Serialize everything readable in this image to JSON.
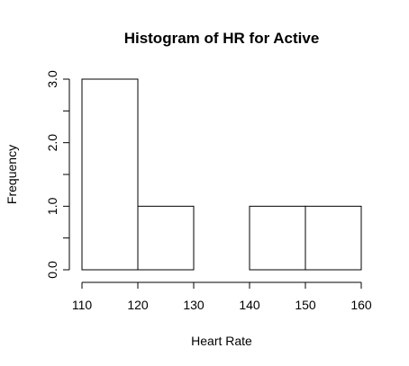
{
  "chart_data": {
    "type": "bar",
    "title": "Histogram of HR for Active",
    "xlabel": "Heart Rate",
    "ylabel": "Frequency",
    "bins": [
      {
        "x0": 110,
        "x1": 120,
        "value": 3
      },
      {
        "x0": 120,
        "x1": 130,
        "value": 1
      },
      {
        "x0": 130,
        "x1": 140,
        "value": 0
      },
      {
        "x0": 140,
        "x1": 150,
        "value": 1
      },
      {
        "x0": 150,
        "x1": 160,
        "value": 1
      }
    ],
    "xlim": [
      110,
      160
    ],
    "ylim": [
      0,
      3
    ],
    "x_ticks": [
      110,
      120,
      130,
      140,
      150,
      160
    ],
    "x_tick_labels": [
      "110",
      "120",
      "130",
      "140",
      "150",
      "160"
    ],
    "y_ticks": [
      0,
      0.5,
      1,
      1.5,
      2,
      2.5,
      3
    ],
    "y_tick_labels": [
      "0.0",
      "",
      "1.0",
      "",
      "2.0",
      "",
      "3.0"
    ],
    "grid": false,
    "legend": "none"
  }
}
